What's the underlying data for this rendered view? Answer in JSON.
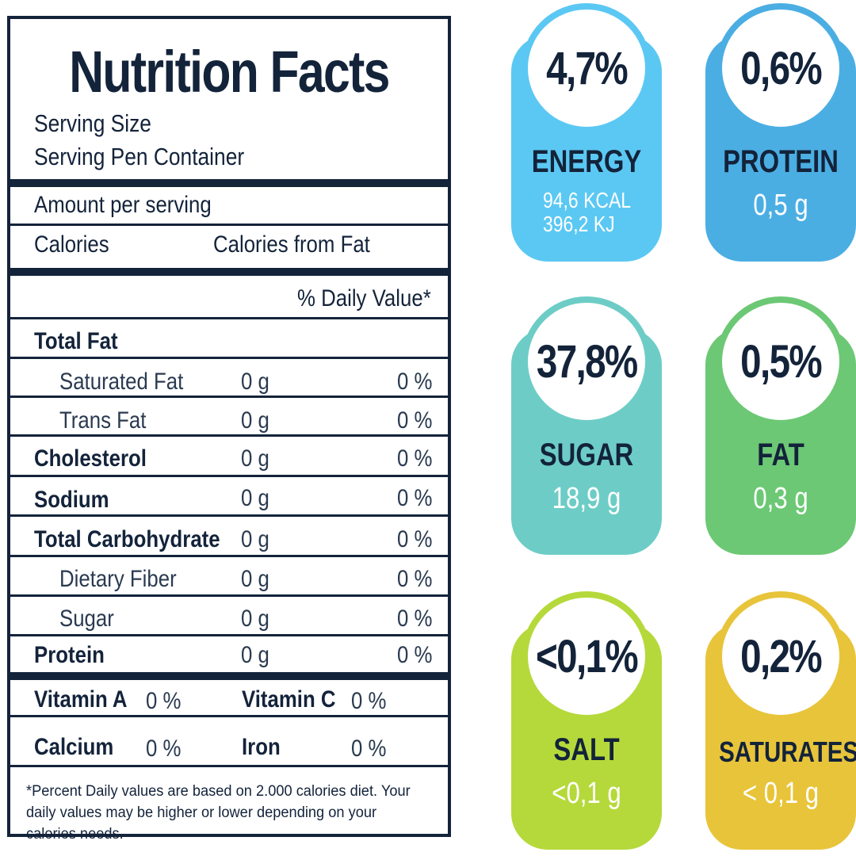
{
  "label": {
    "title": "Nutrition Facts",
    "serving_size": "Serving Size",
    "serving_per_container": "Serving Pen Container",
    "amount_per_serving": "Amount per serving",
    "calories": "Calories",
    "calories_from_fat": "Calories from Fat",
    "daily_value_header": "% Daily Value*",
    "total_fat": "Total Fat",
    "nutrients": [
      {
        "name": "Saturated Fat",
        "amount": "0 g",
        "dv": "0 %"
      },
      {
        "name": "Trans Fat",
        "amount": "0 g",
        "dv": "0 %"
      },
      {
        "name": "Cholesterol",
        "amount": "0 g",
        "dv": "0 %"
      },
      {
        "name": "Sodium",
        "amount": "0 g",
        "dv": "0 %"
      },
      {
        "name": "Total Carbohydrate",
        "amount": "0 g",
        "dv": "0 %"
      },
      {
        "name": "Dietary Fiber",
        "amount": "0 g",
        "dv": "0 %"
      },
      {
        "name": "Sugar",
        "amount": "0 g",
        "dv": "0 %"
      },
      {
        "name": "Protein",
        "amount": "0 g",
        "dv": "0 %"
      }
    ],
    "vitamins": [
      {
        "name": "Vitamin A",
        "value": "0 %"
      },
      {
        "name": "Vitamin C",
        "value": "0 %"
      },
      {
        "name": "Calcium",
        "value": "0 %"
      },
      {
        "name": "Iron",
        "value": "0 %"
      }
    ],
    "footnote": "*Percent Daily values are based on 2.000 calories diet. Your daily values may be higher or lower depending on your calories needs."
  },
  "cards": [
    {
      "percent": "4,7%",
      "name": "ENERGY",
      "value_line1": "94,6 KCAL",
      "value_line2": "396,2 KJ",
      "color": "#5bc8f3",
      "ring": "#5bc8f3"
    },
    {
      "percent": "0,6%",
      "name": "PROTEIN",
      "value": "0,5 g",
      "color": "#4baee3",
      "ring": "#4baee3"
    },
    {
      "percent": "37,8%",
      "name": "SUGAR",
      "value": "18,9 g",
      "color": "#6dcdc6",
      "ring": "#6dcdc6"
    },
    {
      "percent": "0,5%",
      "name": "FAT",
      "value": "0,3 g",
      "color": "#6cc874",
      "ring": "#6cc874"
    },
    {
      "percent": "<0,1%",
      "name": "SALT",
      "value": "<0,1 g",
      "color": "#b5d93b",
      "ring": "#b5d93b"
    },
    {
      "percent": "0,2%",
      "name": "SATURATES",
      "value": "< 0,1 g",
      "color": "#e8c43a",
      "ring": "#e8c43a"
    }
  ]
}
